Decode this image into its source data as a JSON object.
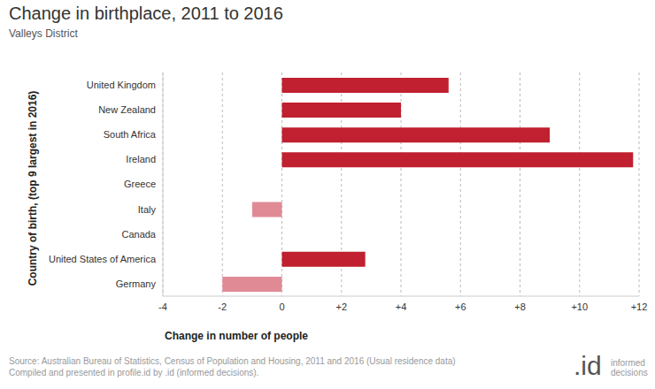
{
  "chart_data": {
    "type": "bar",
    "orientation": "horizontal",
    "title": "Change in birthplace, 2011 to 2016",
    "subtitle": "Valleys District",
    "x_label": "Change in number of people",
    "y_label": "Country of birth, (top 9 largest in 2016)",
    "categories": [
      "United Kingdom",
      "New Zealand",
      "South Africa",
      "Ireland",
      "Greece",
      "Italy",
      "Canada",
      "United States of America",
      "Germany"
    ],
    "values": [
      5.6,
      4,
      9,
      11.8,
      0,
      -1,
      0,
      2.8,
      -2
    ],
    "colors": [
      "#c0202f",
      "#c0202f",
      "#c0202f",
      "#c0202f",
      "#c0202f",
      "#e08a96",
      "#c0202f",
      "#c0202f",
      "#e08a96"
    ],
    "xlim": [
      -4,
      12
    ],
    "xticks": [
      -4,
      -2,
      0,
      {
        "value": 2,
        "label": "+2"
      },
      {
        "value": 4,
        "label": "+4"
      },
      {
        "value": 6,
        "label": "+6"
      },
      {
        "value": 8,
        "label": "+8"
      },
      {
        "value": 10,
        "label": "+10"
      },
      {
        "value": 12,
        "label": "+12"
      }
    ],
    "grid": true,
    "source": [
      "Source: Australian Bureau of Statistics, Census of Population and Housing, 2011 and 2016 (Usual residence data)",
      "Compiled and presented in profile.id by .id (informed decisions)."
    ],
    "logo": ".id",
    "logo_text": [
      "informed",
      "decisions"
    ]
  }
}
